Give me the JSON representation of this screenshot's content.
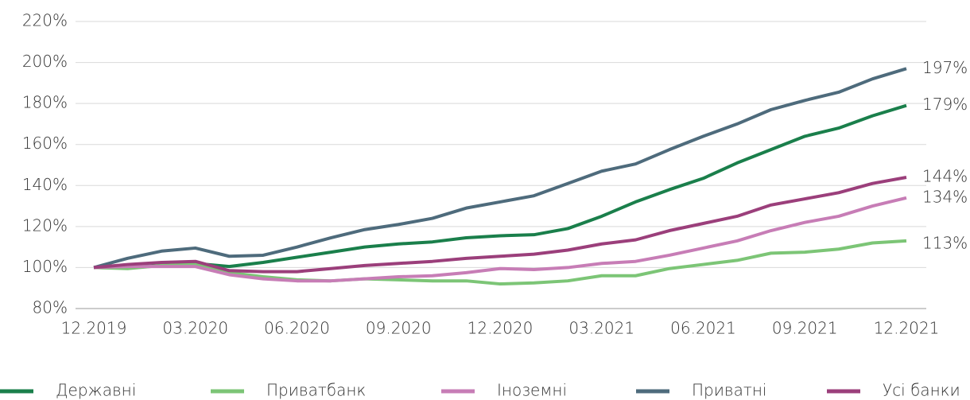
{
  "chart_data": {
    "type": "line",
    "categories": [
      "12.2019",
      null,
      null,
      "03.2020",
      null,
      null,
      "06.2020",
      null,
      null,
      "09.2020",
      null,
      null,
      "12.2020",
      null,
      null,
      "03.2021",
      null,
      null,
      "06.2021",
      null,
      null,
      "09.2021",
      null,
      null,
      "12.2021"
    ],
    "series": [
      {
        "name": "Державні",
        "color": "#1a7f4b",
        "values": [
          100,
          100,
          101,
          102,
          100.5,
          102.5,
          105,
          107.5,
          110,
          111.5,
          112.5,
          114.5,
          115.5,
          116,
          119,
          125,
          132,
          138,
          143.5,
          151,
          157.5,
          164,
          168,
          174,
          179
        ],
        "value_labels": [
          null,
          null,
          null,
          null,
          null,
          null,
          null,
          null,
          null,
          null,
          null,
          null,
          null,
          null,
          null,
          null,
          null,
          null,
          null,
          null,
          null,
          null,
          null,
          null,
          "179%"
        ]
      },
      {
        "name": "Приватбанк",
        "color": "#7cc576",
        "values": [
          100,
          99.5,
          101,
          101.5,
          97.5,
          95.5,
          94,
          93.5,
          94.5,
          94,
          93.5,
          93.5,
          92,
          92.5,
          93.5,
          96,
          96,
          99.5,
          101.5,
          103.5,
          107,
          107.5,
          109,
          112,
          113
        ],
        "value_labels": [
          null,
          null,
          null,
          null,
          null,
          null,
          null,
          null,
          null,
          null,
          null,
          null,
          null,
          null,
          null,
          null,
          null,
          null,
          null,
          null,
          null,
          null,
          null,
          null,
          "113%"
        ]
      },
      {
        "name": "Іноземні",
        "color": "#c77db6",
        "values": [
          100,
          100.5,
          100.5,
          100.5,
          96.5,
          94.5,
          93.5,
          93.5,
          94.5,
          95.5,
          96,
          97.5,
          99.5,
          99,
          100,
          102,
          103,
          106,
          109.5,
          113,
          118,
          122,
          125,
          130,
          134
        ],
        "value_labels": [
          null,
          null,
          null,
          null,
          null,
          null,
          null,
          null,
          null,
          null,
          null,
          null,
          null,
          null,
          null,
          null,
          null,
          null,
          null,
          null,
          null,
          null,
          null,
          null,
          "134%"
        ]
      },
      {
        "name": "Приватні",
        "color": "#4e6b7c",
        "values": [
          100,
          104.5,
          108,
          109.5,
          105.5,
          106,
          110,
          114.5,
          118.5,
          121,
          124,
          129,
          132,
          135,
          141,
          147,
          150.5,
          157.5,
          164,
          170,
          177,
          181.5,
          185.5,
          192,
          197
        ],
        "value_labels": [
          null,
          null,
          null,
          null,
          null,
          null,
          null,
          null,
          null,
          null,
          null,
          null,
          null,
          null,
          null,
          null,
          null,
          null,
          null,
          null,
          null,
          null,
          null,
          null,
          "197%"
        ]
      },
      {
        "name": "Усі банки",
        "color": "#9b3f7b",
        "values": [
          100,
          101.5,
          102.5,
          103,
          98.5,
          98,
          98,
          99.5,
          101,
          102,
          103,
          104.5,
          105.5,
          106.5,
          108.5,
          111.5,
          113.5,
          118,
          121.5,
          125,
          130.5,
          133.5,
          136.5,
          141,
          144
        ],
        "value_labels": [
          null,
          null,
          null,
          null,
          null,
          null,
          null,
          null,
          null,
          null,
          null,
          null,
          null,
          null,
          null,
          null,
          null,
          null,
          null,
          null,
          null,
          null,
          null,
          null,
          "144%"
        ]
      }
    ],
    "ylim": [
      80,
      220
    ],
    "yticks": [
      {
        "value": 80,
        "label": "80%"
      },
      {
        "value": 100,
        "label": "100%"
      },
      {
        "value": 120,
        "label": "120%"
      },
      {
        "value": 140,
        "label": "140%"
      },
      {
        "value": 160,
        "label": "160%"
      },
      {
        "value": 180,
        "label": "180%"
      },
      {
        "value": 200,
        "label": "200%"
      },
      {
        "value": 220,
        "label": "220%"
      }
    ],
    "grid": true
  }
}
